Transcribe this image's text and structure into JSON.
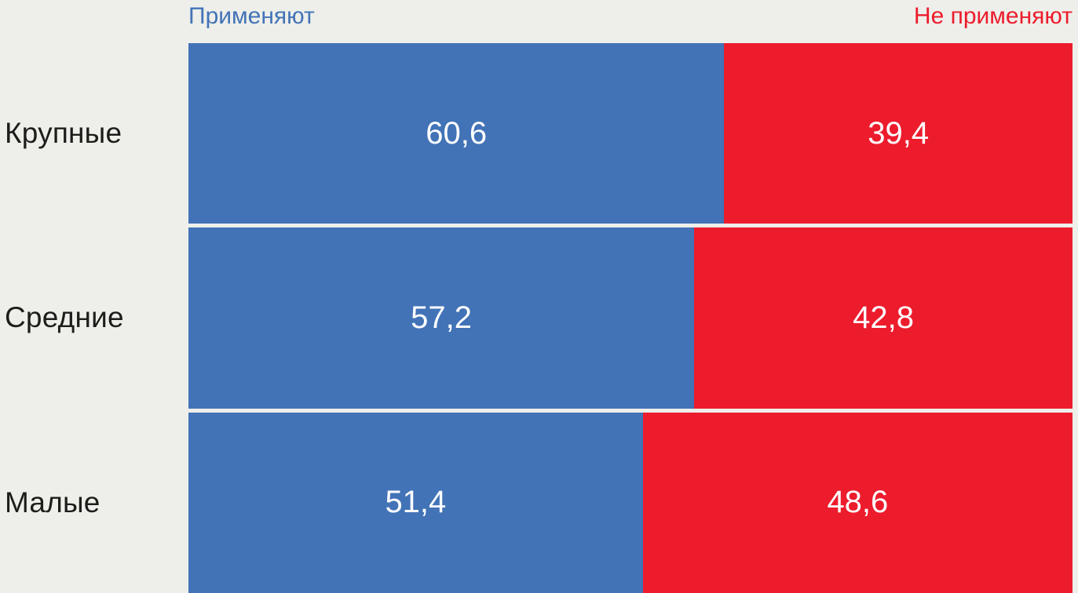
{
  "chart_data": {
    "type": "bar",
    "subtype": "horizontal-stacked-100",
    "title": "",
    "categories": [
      "Крупные",
      "Средние",
      "Малые"
    ],
    "series": [
      {
        "name": "Применяют",
        "color": "#4273B7",
        "values": [
          60.6,
          57.2,
          51.4
        ]
      },
      {
        "name": "Не применяют",
        "color": "#EC1C2D",
        "values": [
          39.4,
          42.8,
          48.6
        ]
      }
    ],
    "value_labels": [
      [
        "60,6",
        "39,4"
      ],
      [
        "57,2",
        "42,8"
      ],
      [
        "51,4",
        "48,6"
      ]
    ],
    "xlim": [
      0,
      100
    ],
    "grid": false,
    "legend_position": "top",
    "colors": {
      "background": "#EEEFEA",
      "category_text": "#1D1D1B",
      "value_text": "#FFFFFF",
      "legend_apply_text": "#4273B7",
      "legend_not_apply_text": "#EC1C2D"
    }
  }
}
